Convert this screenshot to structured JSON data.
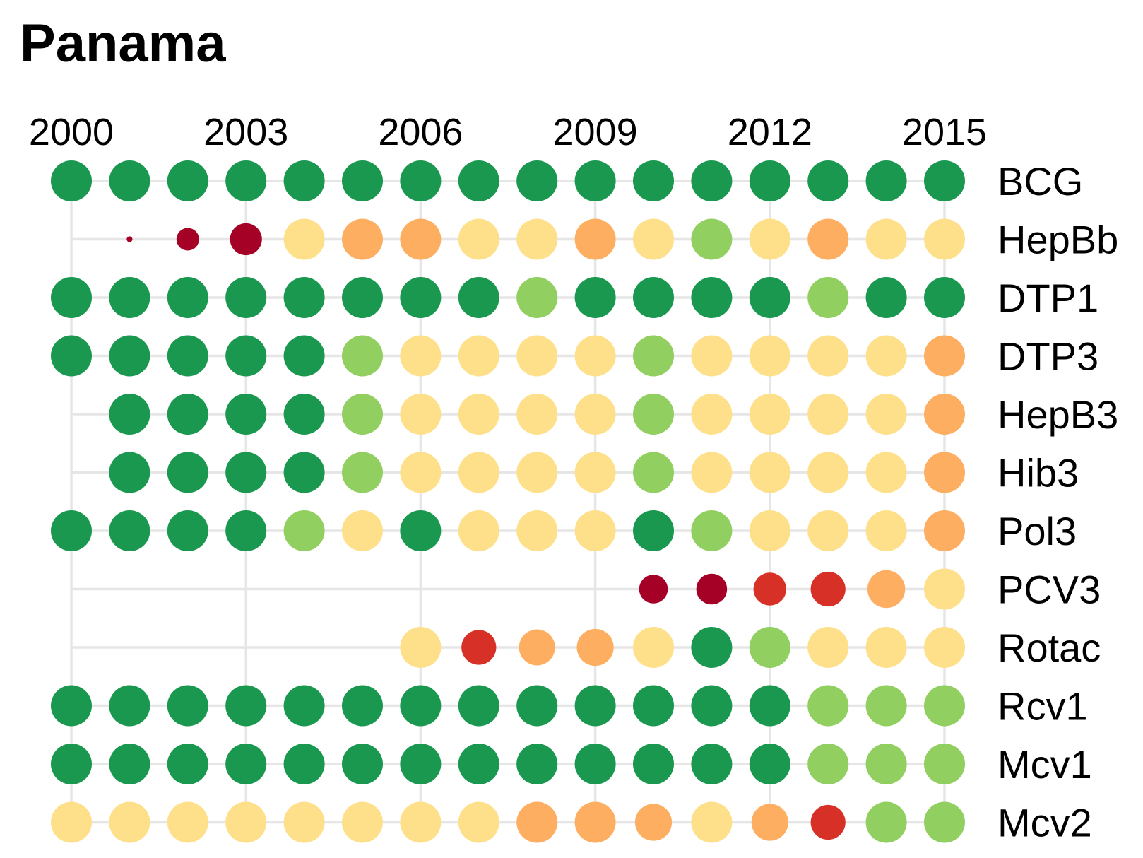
{
  "chart_data": {
    "type": "dot-matrix",
    "title": "Panama",
    "x_ticks": [
      "2000",
      "2003",
      "2006",
      "2009",
      "2012",
      "2015"
    ],
    "years": [
      2000,
      2001,
      2002,
      2003,
      2004,
      2005,
      2006,
      2007,
      2008,
      2009,
      2010,
      2011,
      2012,
      2013,
      2014,
      2015
    ],
    "grid": true,
    "colors": {
      "dark_green": "#1a9850",
      "light_green": "#91cf60",
      "yellow": "#fee08b",
      "orange": "#fdae61",
      "red": "#d73027",
      "dark_red": "#a50026"
    },
    "rows": [
      {
        "label": "BCG",
        "start": 2000,
        "cells": [
          "dark_green",
          "dark_green",
          "dark_green",
          "dark_green",
          "dark_green",
          "dark_green",
          "dark_green",
          "dark_green",
          "dark_green",
          "dark_green",
          "dark_green",
          "dark_green",
          "dark_green",
          "dark_green",
          "dark_green",
          "dark_green"
        ]
      },
      {
        "label": "HepBb",
        "start": 2000,
        "cells": [
          null,
          "dark_red",
          "dark_red",
          "dark_red",
          "yellow",
          "orange",
          "orange",
          "yellow",
          "yellow",
          "orange",
          "yellow",
          "light_green",
          "yellow",
          "orange",
          "yellow",
          "yellow"
        ],
        "sizes": [
          null,
          0.14,
          0.55,
          0.78,
          1,
          1,
          1,
          1,
          1,
          1,
          1,
          1,
          1,
          1,
          1,
          1
        ]
      },
      {
        "label": "DTP1",
        "start": 2000,
        "cells": [
          "dark_green",
          "dark_green",
          "dark_green",
          "dark_green",
          "dark_green",
          "dark_green",
          "dark_green",
          "dark_green",
          "light_green",
          "dark_green",
          "dark_green",
          "dark_green",
          "dark_green",
          "light_green",
          "dark_green",
          "dark_green"
        ]
      },
      {
        "label": "DTP3",
        "start": 2000,
        "cells": [
          "dark_green",
          "dark_green",
          "dark_green",
          "dark_green",
          "dark_green",
          "light_green",
          "yellow",
          "yellow",
          "yellow",
          "yellow",
          "light_green",
          "yellow",
          "yellow",
          "yellow",
          "yellow",
          "orange"
        ]
      },
      {
        "label": "HepB3",
        "start": 2000,
        "cells": [
          null,
          "dark_green",
          "dark_green",
          "dark_green",
          "dark_green",
          "light_green",
          "yellow",
          "yellow",
          "yellow",
          "yellow",
          "light_green",
          "yellow",
          "yellow",
          "yellow",
          "yellow",
          "orange"
        ]
      },
      {
        "label": "Hib3",
        "start": 2000,
        "cells": [
          null,
          "dark_green",
          "dark_green",
          "dark_green",
          "dark_green",
          "light_green",
          "yellow",
          "yellow",
          "yellow",
          "yellow",
          "light_green",
          "yellow",
          "yellow",
          "yellow",
          "yellow",
          "orange"
        ]
      },
      {
        "label": "Pol3",
        "start": 2000,
        "cells": [
          "dark_green",
          "dark_green",
          "dark_green",
          "dark_green",
          "light_green",
          "yellow",
          "dark_green",
          "yellow",
          "yellow",
          "yellow",
          "dark_green",
          "light_green",
          "yellow",
          "yellow",
          "yellow",
          "orange"
        ]
      },
      {
        "label": "PCV3",
        "start": 2000,
        "cells": [
          null,
          null,
          null,
          null,
          null,
          null,
          null,
          null,
          null,
          null,
          "dark_red",
          "dark_red",
          "red",
          "red",
          "orange",
          "yellow"
        ],
        "sizes": [
          null,
          null,
          null,
          null,
          null,
          null,
          null,
          null,
          null,
          null,
          0.7,
          0.75,
          0.8,
          0.85,
          0.92,
          1
        ]
      },
      {
        "label": "Rotac",
        "start": 2000,
        "cells": [
          null,
          null,
          null,
          null,
          null,
          null,
          "yellow",
          "red",
          "orange",
          "orange",
          "yellow",
          "dark_green",
          "light_green",
          "yellow",
          "yellow",
          "yellow"
        ],
        "sizes": [
          null,
          null,
          null,
          null,
          null,
          null,
          1,
          0.85,
          0.88,
          0.9,
          1,
          1,
          1,
          1,
          1,
          1
        ]
      },
      {
        "label": "Rcv1",
        "start": 2000,
        "cells": [
          "dark_green",
          "dark_green",
          "dark_green",
          "dark_green",
          "dark_green",
          "dark_green",
          "dark_green",
          "dark_green",
          "dark_green",
          "dark_green",
          "dark_green",
          "dark_green",
          "dark_green",
          "light_green",
          "light_green",
          "light_green"
        ]
      },
      {
        "label": "Mcv1",
        "start": 2000,
        "cells": [
          "dark_green",
          "dark_green",
          "dark_green",
          "dark_green",
          "dark_green",
          "dark_green",
          "dark_green",
          "dark_green",
          "dark_green",
          "dark_green",
          "dark_green",
          "dark_green",
          "dark_green",
          "light_green",
          "light_green",
          "light_green"
        ]
      },
      {
        "label": "Mcv2",
        "start": 2000,
        "cells": [
          "yellow",
          "yellow",
          "yellow",
          "yellow",
          "yellow",
          "yellow",
          "yellow",
          "yellow",
          "orange",
          "orange",
          "orange",
          "yellow",
          "orange",
          "red",
          "light_green",
          "light_green"
        ],
        "sizes": [
          1,
          1,
          1,
          1,
          1,
          1,
          1,
          1,
          1,
          1,
          0.9,
          1,
          0.9,
          0.85,
          1,
          1
        ]
      }
    ]
  }
}
